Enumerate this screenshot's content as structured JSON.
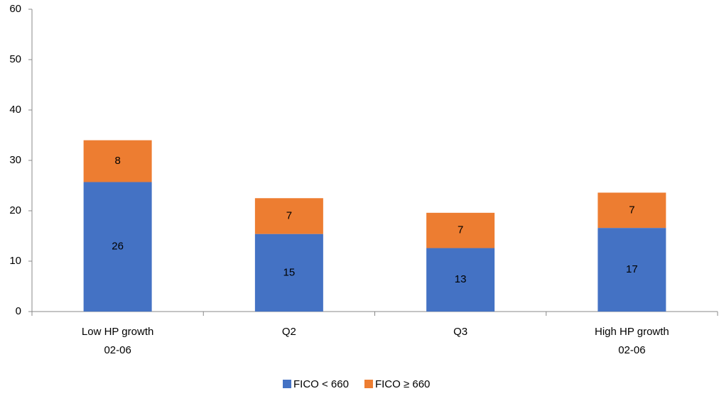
{
  "chart_data": {
    "type": "stacked_bar",
    "categories": [
      [
        "Low HP growth",
        "02-06"
      ],
      [
        "Q2"
      ],
      [
        "Q3"
      ],
      [
        "High HP growth",
        "02-06"
      ]
    ],
    "series": [
      {
        "name": "FICO < 660",
        "color": "#4472c4",
        "values": [
          25.7,
          15.4,
          12.6,
          16.6
        ],
        "value_labels": [
          "26",
          "15",
          "13",
          "17"
        ]
      },
      {
        "name": "FICO ≥ 660",
        "color": "#ed7d31",
        "values": [
          8.3,
          7.1,
          7.0,
          7.0
        ],
        "value_labels": [
          "8",
          "7",
          "7",
          "7"
        ]
      }
    ],
    "ylim": [
      0,
      60
    ],
    "yticks": [
      0,
      10,
      20,
      30,
      40,
      50,
      60
    ],
    "grid": false,
    "legend": "bottom"
  }
}
